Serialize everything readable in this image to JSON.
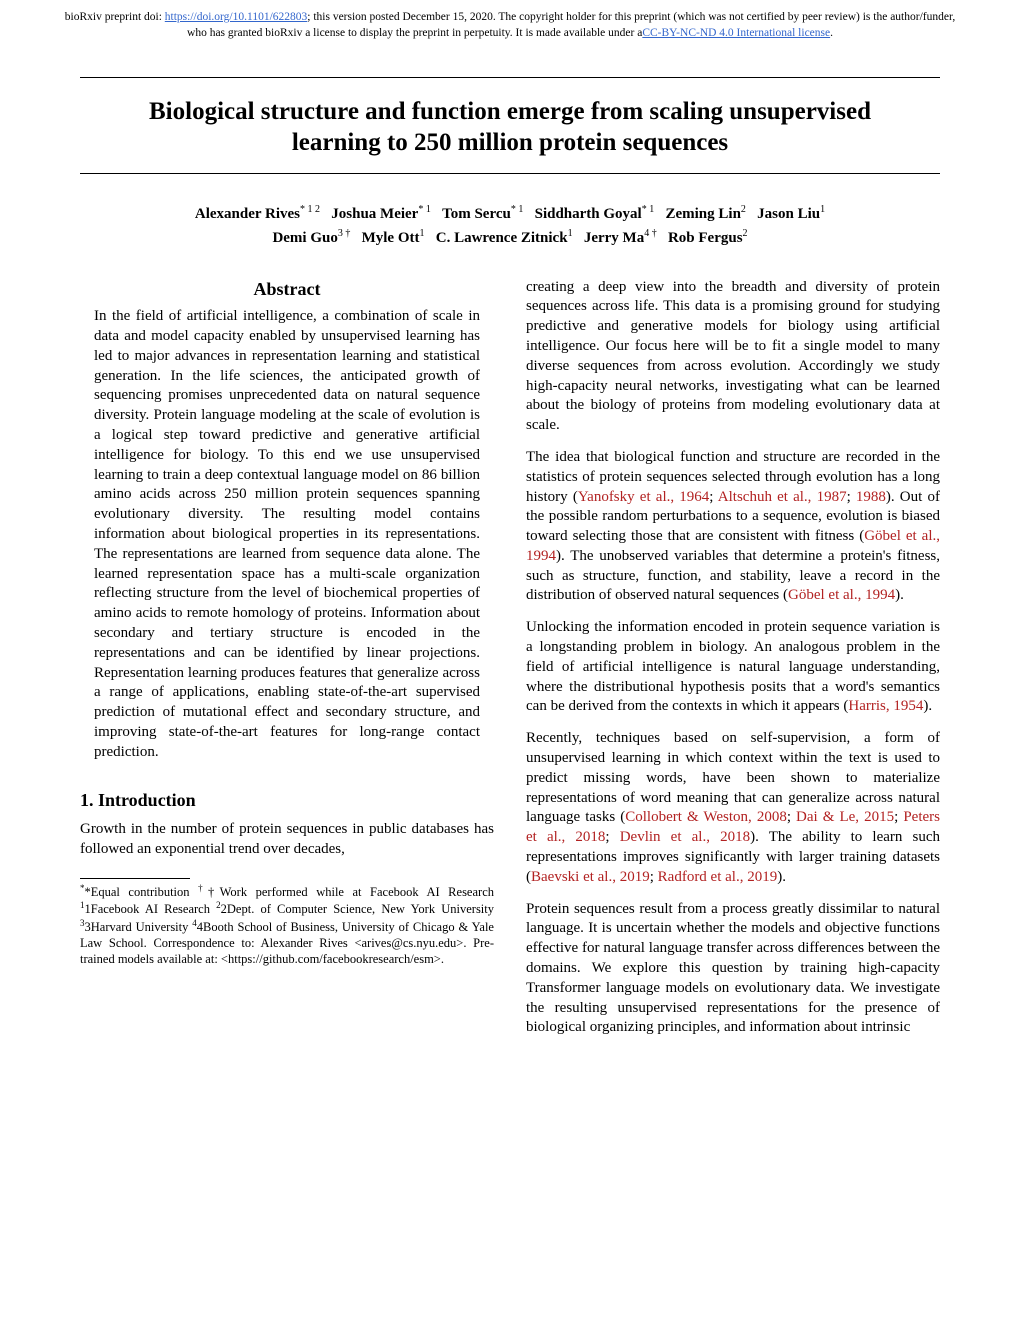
{
  "preprint": {
    "prefix": "bioRxiv preprint doi: ",
    "doi_url": "https://doi.org/10.1101/622803",
    "mid": "; this version posted December 15, 2020. The copyright holder for this preprint (which was not certified by peer review) is the author/funder, who has granted bioRxiv a license to display the preprint in perpetuity. It is made available under a",
    "license_text": "CC-BY-NC-ND 4.0 International license",
    "suffix": "."
  },
  "title": "Biological structure and function emerge from scaling unsupervised learning to 250 million protein sequences",
  "authors_line1": [
    {
      "name": "Alexander Rives",
      "sup": "* 1 2"
    },
    {
      "name": "Joshua Meier",
      "sup": "* 1"
    },
    {
      "name": "Tom Sercu",
      "sup": "* 1"
    },
    {
      "name": "Siddharth Goyal",
      "sup": "* 1"
    },
    {
      "name": "Zeming Lin",
      "sup": "2"
    },
    {
      "name": "Jason Liu",
      "sup": "1"
    }
  ],
  "authors_line2": [
    {
      "name": "Demi Guo",
      "sup": "3 †"
    },
    {
      "name": "Myle Ott",
      "sup": "1"
    },
    {
      "name": "C. Lawrence Zitnick",
      "sup": "1"
    },
    {
      "name": "Jerry Ma",
      "sup": "4 †"
    },
    {
      "name": "Rob Fergus",
      "sup": "2"
    }
  ],
  "abstract_heading": "Abstract",
  "abstract": "In the field of artificial intelligence, a combination of scale in data and model capacity enabled by unsupervised learning has led to major advances in representation learning and statistical generation. In the life sciences, the anticipated growth of sequencing promises unprecedented data on natural sequence diversity. Protein language modeling at the scale of evolution is a logical step toward predictive and generative artificial intelligence for biology. To this end we use unsupervised learning to train a deep contextual language model on 86 billion amino acids across 250 million protein sequences spanning evolutionary diversity. The resulting model contains information about biological properties in its representations. The representations are learned from sequence data alone. The learned representation space has a multi-scale organization reflecting structure from the level of biochemical properties of amino acids to remote homology of proteins. Information about secondary and tertiary structure is encoded in the representations and can be identified by linear projections. Representation learning produces features that generalize across a range of applications, enabling state-of-the-art supervised prediction of mutational effect and secondary structure, and improving state-of-the-art features for long-range contact prediction.",
  "section1_heading": "1. Introduction",
  "intro_p1": "Growth in the number of protein sequences in public databases has followed an exponential trend over decades,",
  "footnote": {
    "text_a": "*Equal contribution ",
    "text_b": "†Work performed while at Facebook AI Research ",
    "aff1": "1Facebook AI Research ",
    "aff2": "2Dept. of Computer Science, New York University ",
    "aff3": "3Harvard University ",
    "aff4": "4Booth School of Business, University of Chicago & Yale Law School. ",
    "corr": "Correspondence to: Alexander Rives <arives@cs.nyu.edu>. Pre-trained models available at: <https://github.com/facebookresearch/esm>."
  },
  "right_p1": "creating a deep view into the breadth and diversity of protein sequences across life. This data is a promising ground for studying predictive and generative models for biology using artificial intelligence. Our focus here will be to fit a single model to many diverse sequences from across evolution. Accordingly we study high-capacity neural networks, investigating what can be learned about the biology of proteins from modeling evolutionary data at scale.",
  "right_p2_a": "The idea that biological function and structure are recorded in the statistics of protein sequences selected through evolution has a long history (",
  "cite_yanofsky": "Yanofsky et al., 1964",
  "right_p2_b": "; ",
  "cite_altschuh": "Altschuh et al., 1987",
  "right_p2_c": "; ",
  "cite_1988": "1988",
  "right_p2_d": "). Out of the possible random perturbations to a sequence, evolution is biased toward selecting those that are consistent with fitness (",
  "cite_gobel1": "Göbel et al., 1994",
  "right_p2_e": "). The unobserved variables that determine a protein's fitness, such as structure, function, and stability, leave a record in the distribution of observed natural sequences (",
  "cite_gobel2": "Göbel et al., 1994",
  "right_p2_f": ").",
  "right_p3_a": "Unlocking the information encoded in protein sequence variation is a longstanding problem in biology. An analogous problem in the field of artificial intelligence is natural language understanding, where the distributional hypothesis posits that a word's semantics can be derived from the contexts in which it appears (",
  "cite_harris": "Harris, 1954",
  "right_p3_b": ").",
  "right_p4_a": "Recently, techniques based on self-supervision, a form of unsupervised learning in which context within the text is used to predict missing words, have been shown to materialize representations of word meaning that can generalize across natural language tasks (",
  "cite_collobert": "Collobert & Weston, 2008",
  "right_p4_b": "; ",
  "cite_dai": "Dai & Le, 2015",
  "right_p4_c": "; ",
  "cite_peters": "Peters et al., 2018",
  "right_p4_d": "; ",
  "cite_devlin": "Devlin et al., 2018",
  "right_p4_e": "). The ability to learn such representations improves significantly with larger training datasets (",
  "cite_baevski": "Baevski et al., 2019",
  "right_p4_f": "; ",
  "cite_radford": "Radford et al., 2019",
  "right_p4_g": ").",
  "right_p5": "Protein sequences result from a process greatly dissimilar to natural language. It is uncertain whether the models and objective functions effective for natural language transfer across differences between the domains. We explore this question by training high-capacity Transformer language models on evolutionary data. We investigate the resulting unsupervised representations for the presence of biological organizing principles, and information about intrinsic"
}
